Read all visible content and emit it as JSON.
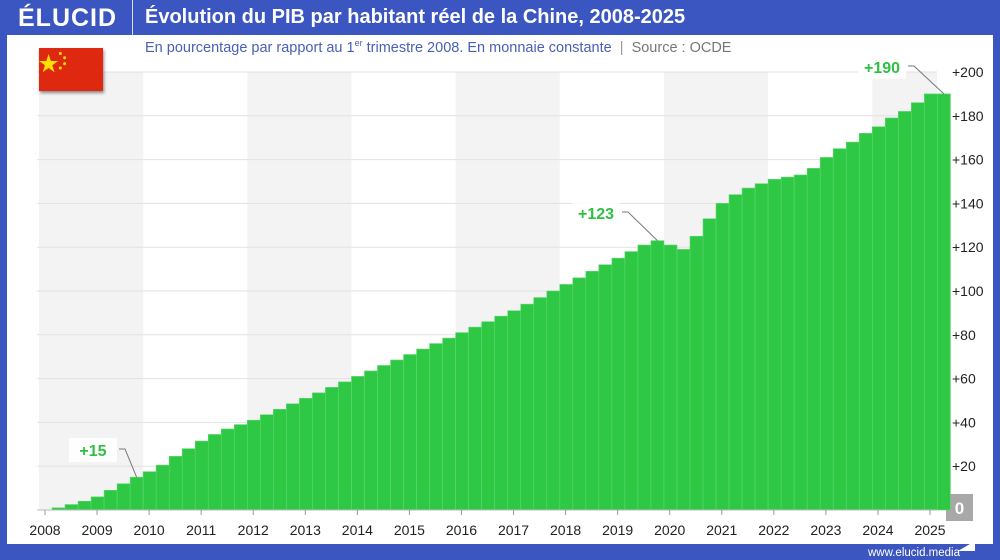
{
  "header": {
    "logo": "ÉLUCID",
    "title": "Évolution du PIB par habitant réel de la Chine, 2008-2025"
  },
  "subtitle": {
    "main": "En pourcentage par rapport au 1",
    "sup": "er",
    "rest": " trimestre 2008. En monnaie constante",
    "source": "Source : OCDE"
  },
  "flag": {
    "name": "china-flag",
    "colors": {
      "red": "#de2910",
      "yellow": "#ffde00"
    }
  },
  "footer": {
    "url": "www.elucid.media"
  },
  "chart_data": {
    "type": "bar",
    "title": "Évolution du PIB par habitant réel de la Chine, 2008-2025",
    "frequency": "quarterly",
    "x_start": "2008 Q1",
    "x_ticks": [
      "2008",
      "2009",
      "2010",
      "2011",
      "2012",
      "2013",
      "2014",
      "2015",
      "2016",
      "2017",
      "2018",
      "2019",
      "2020",
      "2021",
      "2022",
      "2023",
      "2024",
      "2025"
    ],
    "y_ticks": [
      "0",
      "+20",
      "+40",
      "+60",
      "+80",
      "+100",
      "+120",
      "+140",
      "+160",
      "+180",
      "+200"
    ],
    "ylim": [
      0,
      200
    ],
    "grid": true,
    "bar_color": "#2ec845",
    "values": [
      0,
      1,
      2.5,
      4,
      6,
      9,
      12,
      15,
      17.5,
      20.5,
      24.5,
      28,
      31.5,
      34.5,
      37,
      39,
      41,
      43.5,
      46,
      48.5,
      51,
      53.5,
      56,
      58.5,
      61,
      63.5,
      66,
      68.5,
      71,
      73.5,
      76,
      78.5,
      81,
      83.5,
      86,
      88.5,
      91,
      94,
      97,
      100,
      103,
      106,
      109,
      112,
      115,
      118,
      121,
      123,
      121,
      119,
      125,
      133,
      140,
      144,
      147,
      149,
      151,
      152,
      153,
      156,
      161,
      165,
      168,
      172,
      175,
      179,
      182,
      186,
      190,
      190
    ],
    "annotations": [
      {
        "text": "+15",
        "index": 7
      },
      {
        "text": "+123",
        "index": 47
      },
      {
        "text": "+190",
        "index": 69
      }
    ]
  }
}
